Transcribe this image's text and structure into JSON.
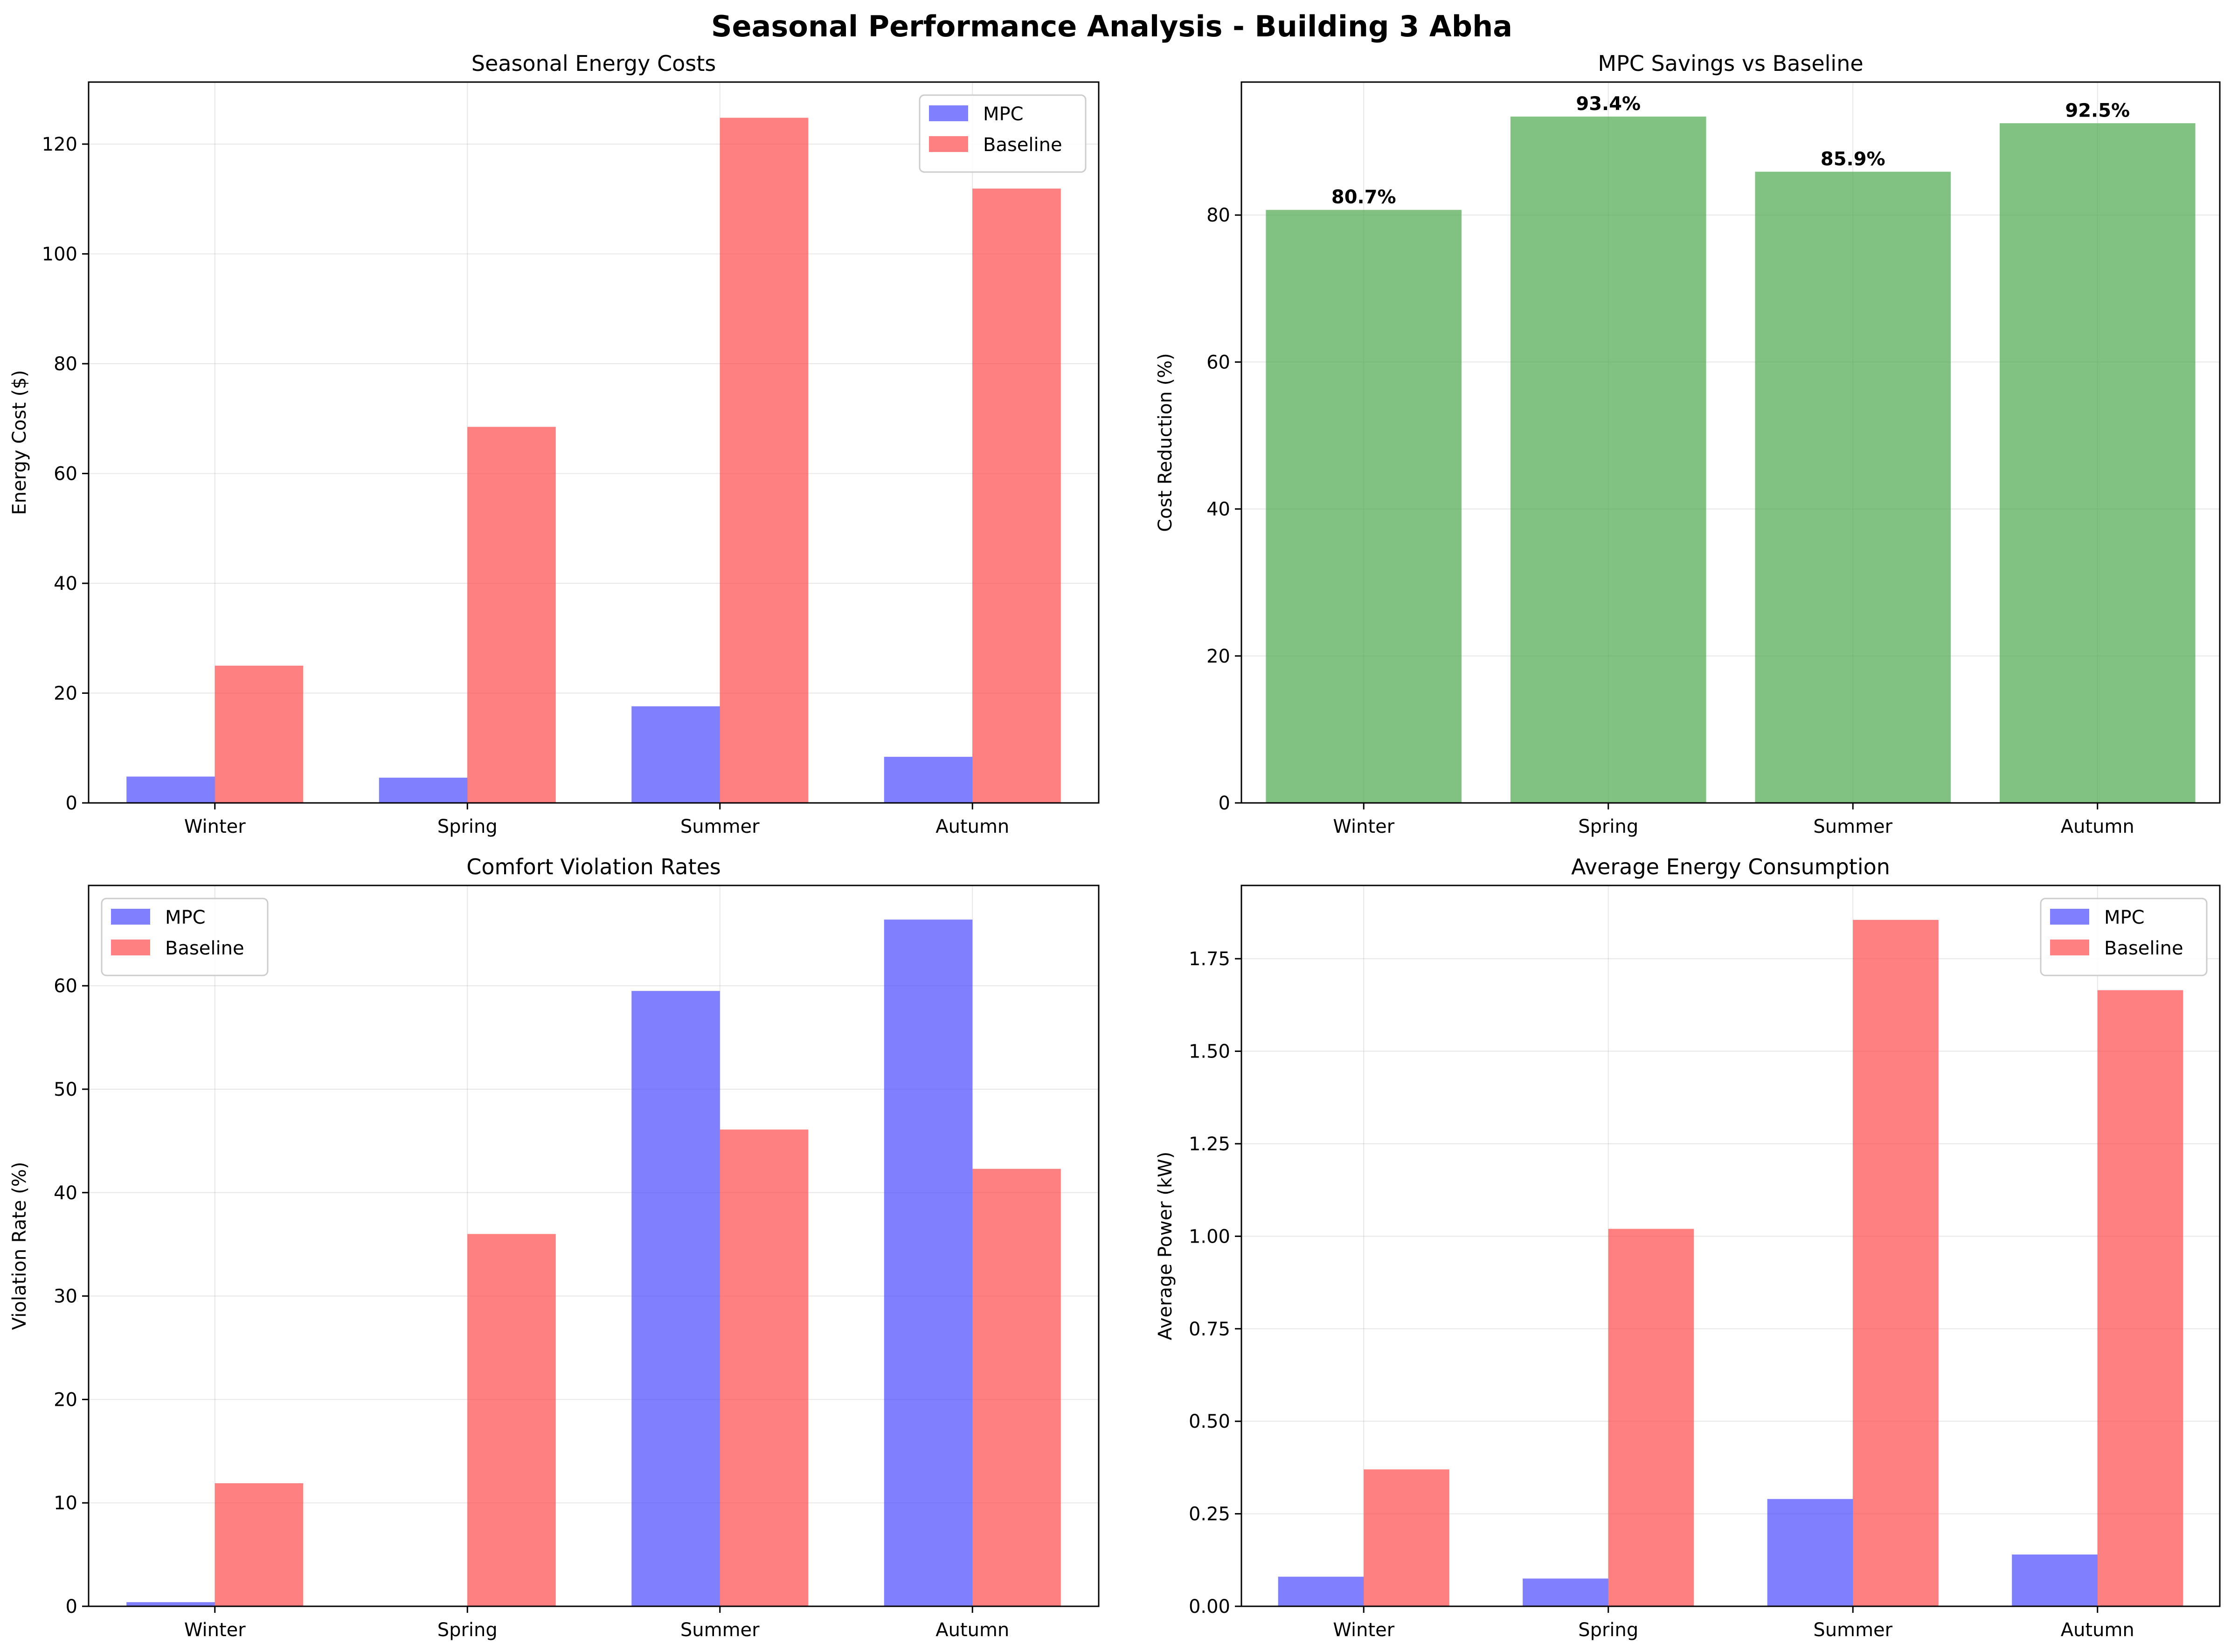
{
  "suptitle": "Seasonal Performance Analysis - Building 3 Abha",
  "colors": {
    "mpc": "#4a4aff",
    "baseline": "#ff4a4a",
    "savings": "#4ca64c"
  },
  "chart_data": [
    {
      "id": "costs",
      "type": "bar",
      "title": "Seasonal Energy Costs",
      "xlabel": "",
      "ylabel": "Energy Cost ($)",
      "categories": [
        "Winter",
        "Spring",
        "Summer",
        "Autumn"
      ],
      "series": [
        {
          "name": "MPC",
          "color": "#4a4aff",
          "values": [
            4.8,
            4.6,
            17.6,
            8.4
          ]
        },
        {
          "name": "Baseline",
          "color": "#ff4a4a",
          "values": [
            25.0,
            68.5,
            124.8,
            111.9
          ]
        }
      ],
      "ylim": [
        0,
        131.3
      ],
      "yticks": [
        0,
        20,
        40,
        60,
        80,
        100,
        120
      ],
      "ytick_labels": [
        "0",
        "20",
        "40",
        "60",
        "80",
        "100",
        "120"
      ],
      "grid": true,
      "legend": "top-right"
    },
    {
      "id": "savings",
      "type": "bar",
      "title": "MPC Savings vs Baseline",
      "xlabel": "",
      "ylabel": "Cost Reduction (%)",
      "categories": [
        "Winter",
        "Spring",
        "Summer",
        "Autumn"
      ],
      "series": [
        {
          "color": "#4ca64c",
          "values": [
            80.7,
            93.4,
            85.9,
            92.5
          ]
        }
      ],
      "data_labels": [
        "80.7%",
        "93.4%",
        "85.9%",
        "92.5%"
      ],
      "ylim": [
        0,
        98.1
      ],
      "yticks": [
        0,
        20,
        40,
        60,
        80
      ],
      "ytick_labels": [
        "0",
        "20",
        "40",
        "60",
        "80"
      ],
      "grid": true,
      "legend": "none"
    },
    {
      "id": "violations",
      "type": "bar",
      "title": "Comfort Violation Rates",
      "xlabel": "",
      "ylabel": "Violation Rate (%)",
      "categories": [
        "Winter",
        "Spring",
        "Summer",
        "Autumn"
      ],
      "series": [
        {
          "name": "MPC",
          "color": "#4a4aff",
          "values": [
            0.4,
            0.0,
            59.5,
            66.4
          ]
        },
        {
          "name": "Baseline",
          "color": "#ff4a4a",
          "values": [
            11.9,
            36.0,
            46.1,
            42.3
          ]
        }
      ],
      "ylim": [
        0,
        69.7
      ],
      "yticks": [
        0,
        10,
        20,
        30,
        40,
        50,
        60
      ],
      "ytick_labels": [
        "0",
        "10",
        "20",
        "30",
        "40",
        "50",
        "60"
      ],
      "grid": true,
      "legend": "top-left"
    },
    {
      "id": "power",
      "type": "bar",
      "title": "Average Energy Consumption",
      "xlabel": "",
      "ylabel": "Average Power (kW)",
      "categories": [
        "Winter",
        "Spring",
        "Summer",
        "Autumn"
      ],
      "series": [
        {
          "name": "MPC",
          "color": "#4a4aff",
          "values": [
            0.08,
            0.075,
            0.29,
            0.14
          ]
        },
        {
          "name": "Baseline",
          "color": "#ff4a4a",
          "values": [
            0.37,
            1.02,
            1.855,
            1.665
          ]
        }
      ],
      "ylim": [
        0,
        1.948
      ],
      "yticks": [
        0,
        0.25,
        0.5,
        0.75,
        1.0,
        1.25,
        1.5,
        1.75
      ],
      "ytick_labels": [
        "0.00",
        "0.25",
        "0.50",
        "0.75",
        "1.00",
        "1.25",
        "1.50",
        "1.75"
      ],
      "grid": true,
      "legend": "top-right"
    }
  ]
}
